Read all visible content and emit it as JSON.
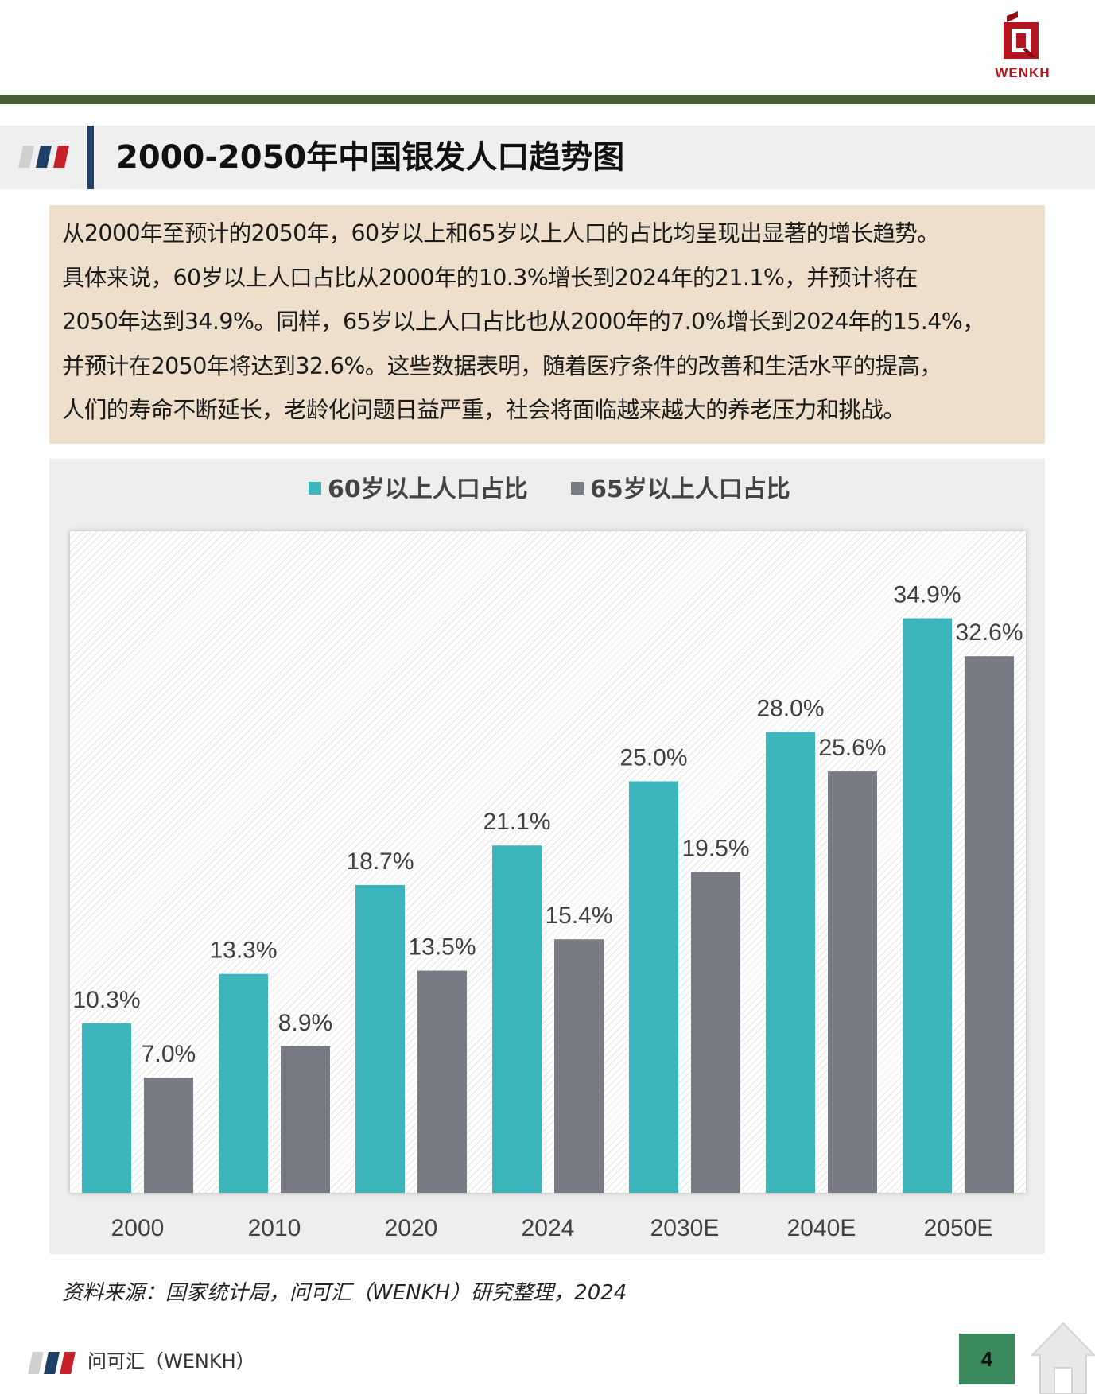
{
  "brand": {
    "logo_text": "WENKH",
    "colors": {
      "brand_red": "#b5151e",
      "green_rule": "#4a5e35",
      "navy": "#1e3f66"
    }
  },
  "header": {
    "title": "2000-2050年中国银发人口趋势图"
  },
  "summary": {
    "lines": [
      "从2000年至预计的2050年，60岁以上和65岁以上人口的占比均呈现出显著的增长趋势。",
      "具体来说，60岁以上人口占比从2000年的10.3%增长到2024年的21.1%，并预计将在",
      "2050年达到34.9%。同样，65岁以上人口占比也从2000年的7.0%增长到2024年的15.4%，",
      "并预计在2050年将达到32.6%。这些数据表明，随着医疗条件的改善和生活水平的提高，",
      "人们的寿命不断延长，老龄化问题日益严重，社会将面临越来越大的养老压力和挑战。"
    ]
  },
  "chart_data": {
    "type": "bar",
    "categories": [
      "2000",
      "2010",
      "2020",
      "2024",
      "2030E",
      "2040E",
      "2050E"
    ],
    "series": [
      {
        "name": "60岁以上人口占比",
        "color": "#3db5bd",
        "values": [
          10.3,
          13.3,
          18.7,
          21.1,
          25.0,
          28.0,
          34.9
        ],
        "labels": [
          "10.3%",
          "13.3%",
          "18.7%",
          "21.1%",
          "25.0%",
          "28.0%",
          "34.9%"
        ]
      },
      {
        "name": "65岁以上人口占比",
        "color": "#797b84",
        "values": [
          7.0,
          8.9,
          13.5,
          15.4,
          19.5,
          25.6,
          32.6
        ],
        "labels": [
          "7.0%",
          "8.9%",
          "13.5%",
          "15.4%",
          "19.5%",
          "25.6%",
          "32.6%"
        ]
      }
    ],
    "title": "",
    "xlabel": "",
    "ylabel": "",
    "ylim": [
      0,
      40
    ],
    "grid": false,
    "legend_position": "top-center"
  },
  "source_note": "资料来源：国家统计局，问可汇（WENKH）研究整理，2024",
  "footer": {
    "brand_text": "问可汇（WENKH）",
    "page_number": "4"
  }
}
